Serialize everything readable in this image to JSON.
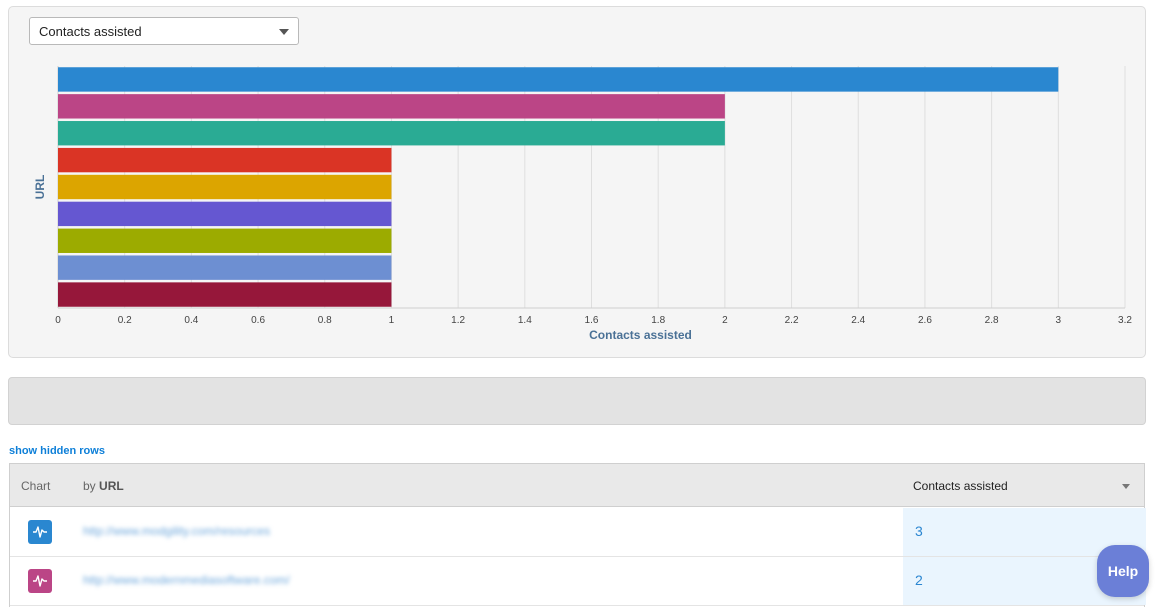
{
  "metric_select": {
    "selected": "Contacts assisted"
  },
  "chart_data": {
    "type": "bar",
    "orientation": "horizontal",
    "ylabel": "URL",
    "xlabel": "Contacts assisted",
    "xlim": [
      0,
      3.2
    ],
    "xticks": [
      "0",
      "0.2",
      "0.4",
      "0.6",
      "0.8",
      "1",
      "1.2",
      "1.4",
      "1.6",
      "1.8",
      "2",
      "2.2",
      "2.4",
      "2.6",
      "2.8",
      "3",
      "3.2"
    ],
    "grid": true,
    "values": [
      3,
      2,
      2,
      1,
      1,
      1,
      1,
      1,
      1
    ],
    "colors": [
      "#2a87d0",
      "#bb4586",
      "#2aab94",
      "#da3425",
      "#dca500",
      "#6557d1",
      "#9cab00",
      "#6d8fd2",
      "#96173a"
    ]
  },
  "show_hidden_rows": "show hidden rows",
  "table": {
    "headers": {
      "chart": "Chart",
      "by": "by",
      "url": "URL",
      "metric": "Contacts assisted"
    },
    "rows": [
      {
        "color": "#2a87d0",
        "url": "http://www.modgility.com/resources",
        "value": "3"
      },
      {
        "color": "#bb4586",
        "url": "http://www.modernmediasoftware.com/",
        "value": "2"
      }
    ]
  },
  "help_button": "Help"
}
